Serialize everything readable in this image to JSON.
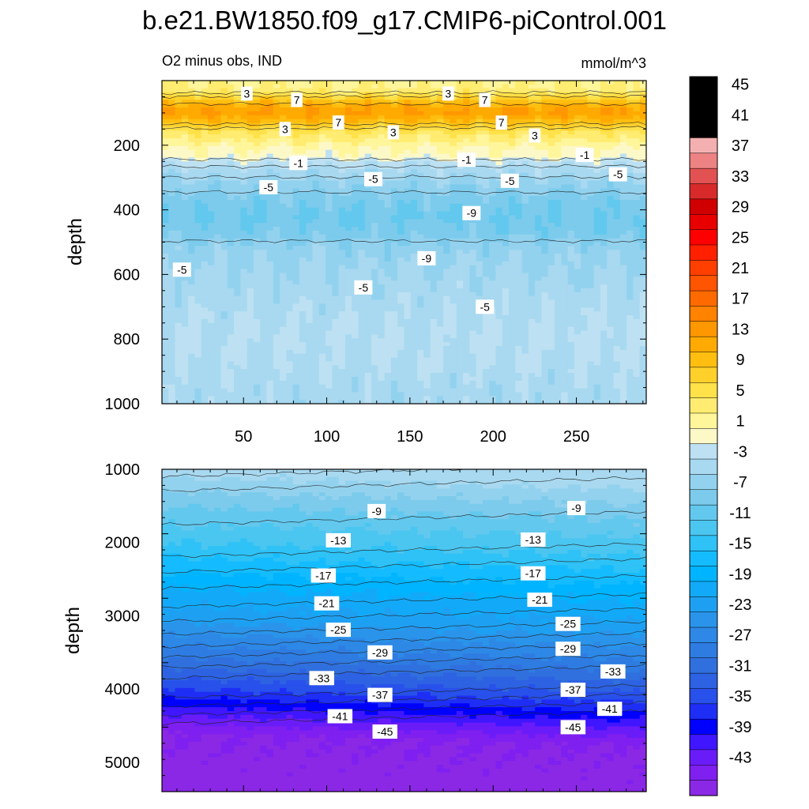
{
  "figure": {
    "title": "b.e21.BW1850.f09_g17.CMIP6-piControl.001",
    "left_string": "O2 minus obs, IND",
    "right_string": "mmol/m^3"
  },
  "chart_data": [
    {
      "type": "heatmap",
      "panel": "upper",
      "xlabel": "",
      "ylabel": "depth",
      "xlim": [
        1,
        292
      ],
      "ylim": [
        1000,
        0
      ],
      "x_ticks": [
        50,
        100,
        150,
        200,
        250
      ],
      "y_ticks": [
        200,
        400,
        600,
        800,
        1000
      ],
      "depth_profile": [
        {
          "depth": 0,
          "value": 3
        },
        {
          "depth": 25,
          "value": 3
        },
        {
          "depth": 45,
          "value": 6
        },
        {
          "depth": 60,
          "value": 9
        },
        {
          "depth": 80,
          "value": 12
        },
        {
          "depth": 100,
          "value": 13
        },
        {
          "depth": 120,
          "value": 11
        },
        {
          "depth": 140,
          "value": 8
        },
        {
          "depth": 160,
          "value": 5
        },
        {
          "depth": 185,
          "value": 3
        },
        {
          "depth": 210,
          "value": 1
        },
        {
          "depth": 235,
          "value": 0
        },
        {
          "depth": 250,
          "value": -2
        },
        {
          "depth": 280,
          "value": -4
        },
        {
          "depth": 320,
          "value": -6
        },
        {
          "depth": 370,
          "value": -8
        },
        {
          "depth": 420,
          "value": -9
        },
        {
          "depth": 470,
          "value": -8
        },
        {
          "depth": 520,
          "value": -6
        },
        {
          "depth": 580,
          "value": -5
        },
        {
          "depth": 660,
          "value": -4
        },
        {
          "depth": 760,
          "value": -3
        },
        {
          "depth": 860,
          "value": -3
        },
        {
          "depth": 960,
          "value": -4
        },
        {
          "depth": 1000,
          "value": -4
        }
      ],
      "contour_labels": [
        {
          "text": "3",
          "x": 52,
          "depth": 40
        },
        {
          "text": "7",
          "x": 82,
          "depth": 60
        },
        {
          "text": "3",
          "x": 173,
          "depth": 40
        },
        {
          "text": "7",
          "x": 195,
          "depth": 60
        },
        {
          "text": "7",
          "x": 107,
          "depth": 130
        },
        {
          "text": "7",
          "x": 205,
          "depth": 130
        },
        {
          "text": "3",
          "x": 75,
          "depth": 150
        },
        {
          "text": "3",
          "x": 140,
          "depth": 160
        },
        {
          "text": "3",
          "x": 225,
          "depth": 170
        },
        {
          "text": "-1",
          "x": 83,
          "depth": 255
        },
        {
          "text": "-1",
          "x": 184,
          "depth": 245
        },
        {
          "text": "-1",
          "x": 255,
          "depth": 230
        },
        {
          "text": "-5",
          "x": 65,
          "depth": 330
        },
        {
          "text": "-5",
          "x": 128,
          "depth": 305
        },
        {
          "text": "-5",
          "x": 210,
          "depth": 310
        },
        {
          "text": "-5",
          "x": 275,
          "depth": 290
        },
        {
          "text": "-9",
          "x": 187,
          "depth": 410
        },
        {
          "text": "-9",
          "x": 160,
          "depth": 550
        },
        {
          "text": "-5",
          "x": 13,
          "depth": 585
        },
        {
          "text": "-5",
          "x": 122,
          "depth": 640
        },
        {
          "text": "-5",
          "x": 195,
          "depth": 700
        }
      ]
    },
    {
      "type": "heatmap",
      "panel": "lower",
      "xlabel": "",
      "ylabel": "depth",
      "xlim": [
        1,
        292
      ],
      "ylim": [
        5400,
        1000
      ],
      "x_ticks": [
        50,
        100,
        150,
        200,
        250
      ],
      "y_ticks": [
        1000,
        2000,
        3000,
        4000,
        5000
      ],
      "depth_profile": [
        {
          "depth": 1000,
          "value": -4
        },
        {
          "depth": 1200,
          "value": -6
        },
        {
          "depth": 1500,
          "value": -9
        },
        {
          "depth": 2000,
          "value": -13
        },
        {
          "depth": 2500,
          "value": -18
        },
        {
          "depth": 3000,
          "value": -22
        },
        {
          "depth": 3500,
          "value": -28
        },
        {
          "depth": 4000,
          "value": -35
        },
        {
          "depth": 4300,
          "value": -40
        },
        {
          "depth": 4600,
          "value": -45
        },
        {
          "depth": 5400,
          "value": -46
        }
      ],
      "contour_labels": [
        {
          "text": "-9",
          "x": 130,
          "depth": 1570
        },
        {
          "text": "-9",
          "x": 250,
          "depth": 1530
        },
        {
          "text": "-13",
          "x": 107,
          "depth": 1970
        },
        {
          "text": "-13",
          "x": 224,
          "depth": 1960
        },
        {
          "text": "-17",
          "x": 98,
          "depth": 2450
        },
        {
          "text": "-17",
          "x": 224,
          "depth": 2420
        },
        {
          "text": "-21",
          "x": 100,
          "depth": 2830
        },
        {
          "text": "-21",
          "x": 228,
          "depth": 2780
        },
        {
          "text": "-25",
          "x": 107,
          "depth": 3190
        },
        {
          "text": "-25",
          "x": 245,
          "depth": 3110
        },
        {
          "text": "-29",
          "x": 132,
          "depth": 3500
        },
        {
          "text": "-29",
          "x": 245,
          "depth": 3450
        },
        {
          "text": "-33",
          "x": 97,
          "depth": 3850
        },
        {
          "text": "-33",
          "x": 272,
          "depth": 3760
        },
        {
          "text": "-37",
          "x": 132,
          "depth": 4080
        },
        {
          "text": "-37",
          "x": 248,
          "depth": 4010
        },
        {
          "text": "-41",
          "x": 108,
          "depth": 4370
        },
        {
          "text": "-41",
          "x": 270,
          "depth": 4270
        },
        {
          "text": "-45",
          "x": 135,
          "depth": 4580
        },
        {
          "text": "-45",
          "x": 248,
          "depth": 4520
        }
      ]
    }
  ],
  "colorbar": {
    "levels": [
      -47,
      -45,
      -43,
      -41,
      -39,
      -37,
      -35,
      -33,
      -31,
      -29,
      -27,
      -25,
      -23,
      -21,
      -19,
      -17,
      -15,
      -13,
      -11,
      -9,
      -7,
      -5,
      -3,
      -1,
      1,
      3,
      5,
      7,
      9,
      11,
      13,
      15,
      17,
      19,
      21,
      23,
      25,
      27,
      29,
      31,
      33,
      35,
      37,
      39,
      41,
      43,
      45,
      47
    ],
    "labels": [
      "45",
      "41",
      "37",
      "33",
      "29",
      "25",
      "21",
      "17",
      "13",
      "9",
      "5",
      "1",
      "-3",
      "-7",
      "-11",
      "-15",
      "-19",
      "-23",
      "-27",
      "-31",
      "-35",
      "-39",
      "-43"
    ],
    "colors": {
      "c_neg47": "#8a28e6",
      "c_neg45": "#7f1ff0",
      "c_neg43": "#6a1cf8",
      "c_neg41": "#3f16ff",
      "c_neg39": "#0000ff",
      "c_neg37": "#1e2ef5",
      "c_neg35": "#2850ea",
      "c_neg33": "#2d62e2",
      "c_neg31": "#3070de",
      "c_neg29": "#2e7ce2",
      "c_neg27": "#2d88e6",
      "c_neg25": "#2a94ea",
      "c_neg23": "#1ea0f2",
      "c_neg21": "#12aaf8",
      "c_neg19": "#00b4ff",
      "c_neg17": "#14bcff",
      "c_neg15": "#2ec2f6",
      "c_neg13": "#4ac6f0",
      "c_neg11": "#62c8ee",
      "c_neg9": "#7ccbec",
      "c_neg7": "#93d2ee",
      "c_neg5": "#a8d9f0",
      "c_neg3": "#bde1f2",
      "c_neg1": "#fdf8c8",
      "c_pos1": "#fff59a",
      "c_pos3": "#ffec70",
      "c_pos5": "#ffe14a",
      "c_pos7": "#ffd02a",
      "c_pos9": "#ffbe10",
      "c_pos11": "#ffaa00",
      "c_pos13": "#ff9700",
      "c_pos15": "#ff8200",
      "c_pos17": "#ff6a00",
      "c_pos19": "#ff5400",
      "c_pos21": "#ff3f00",
      "c_pos23": "#ff2000",
      "c_pos25": "#ff0000",
      "c_pos27": "#e80000",
      "c_pos29": "#d00000",
      "c_pos31": "#d82a2a",
      "c_pos33": "#e25252",
      "c_pos35": "#ec8282",
      "c_pos37": "#f4b0b0"
    }
  }
}
